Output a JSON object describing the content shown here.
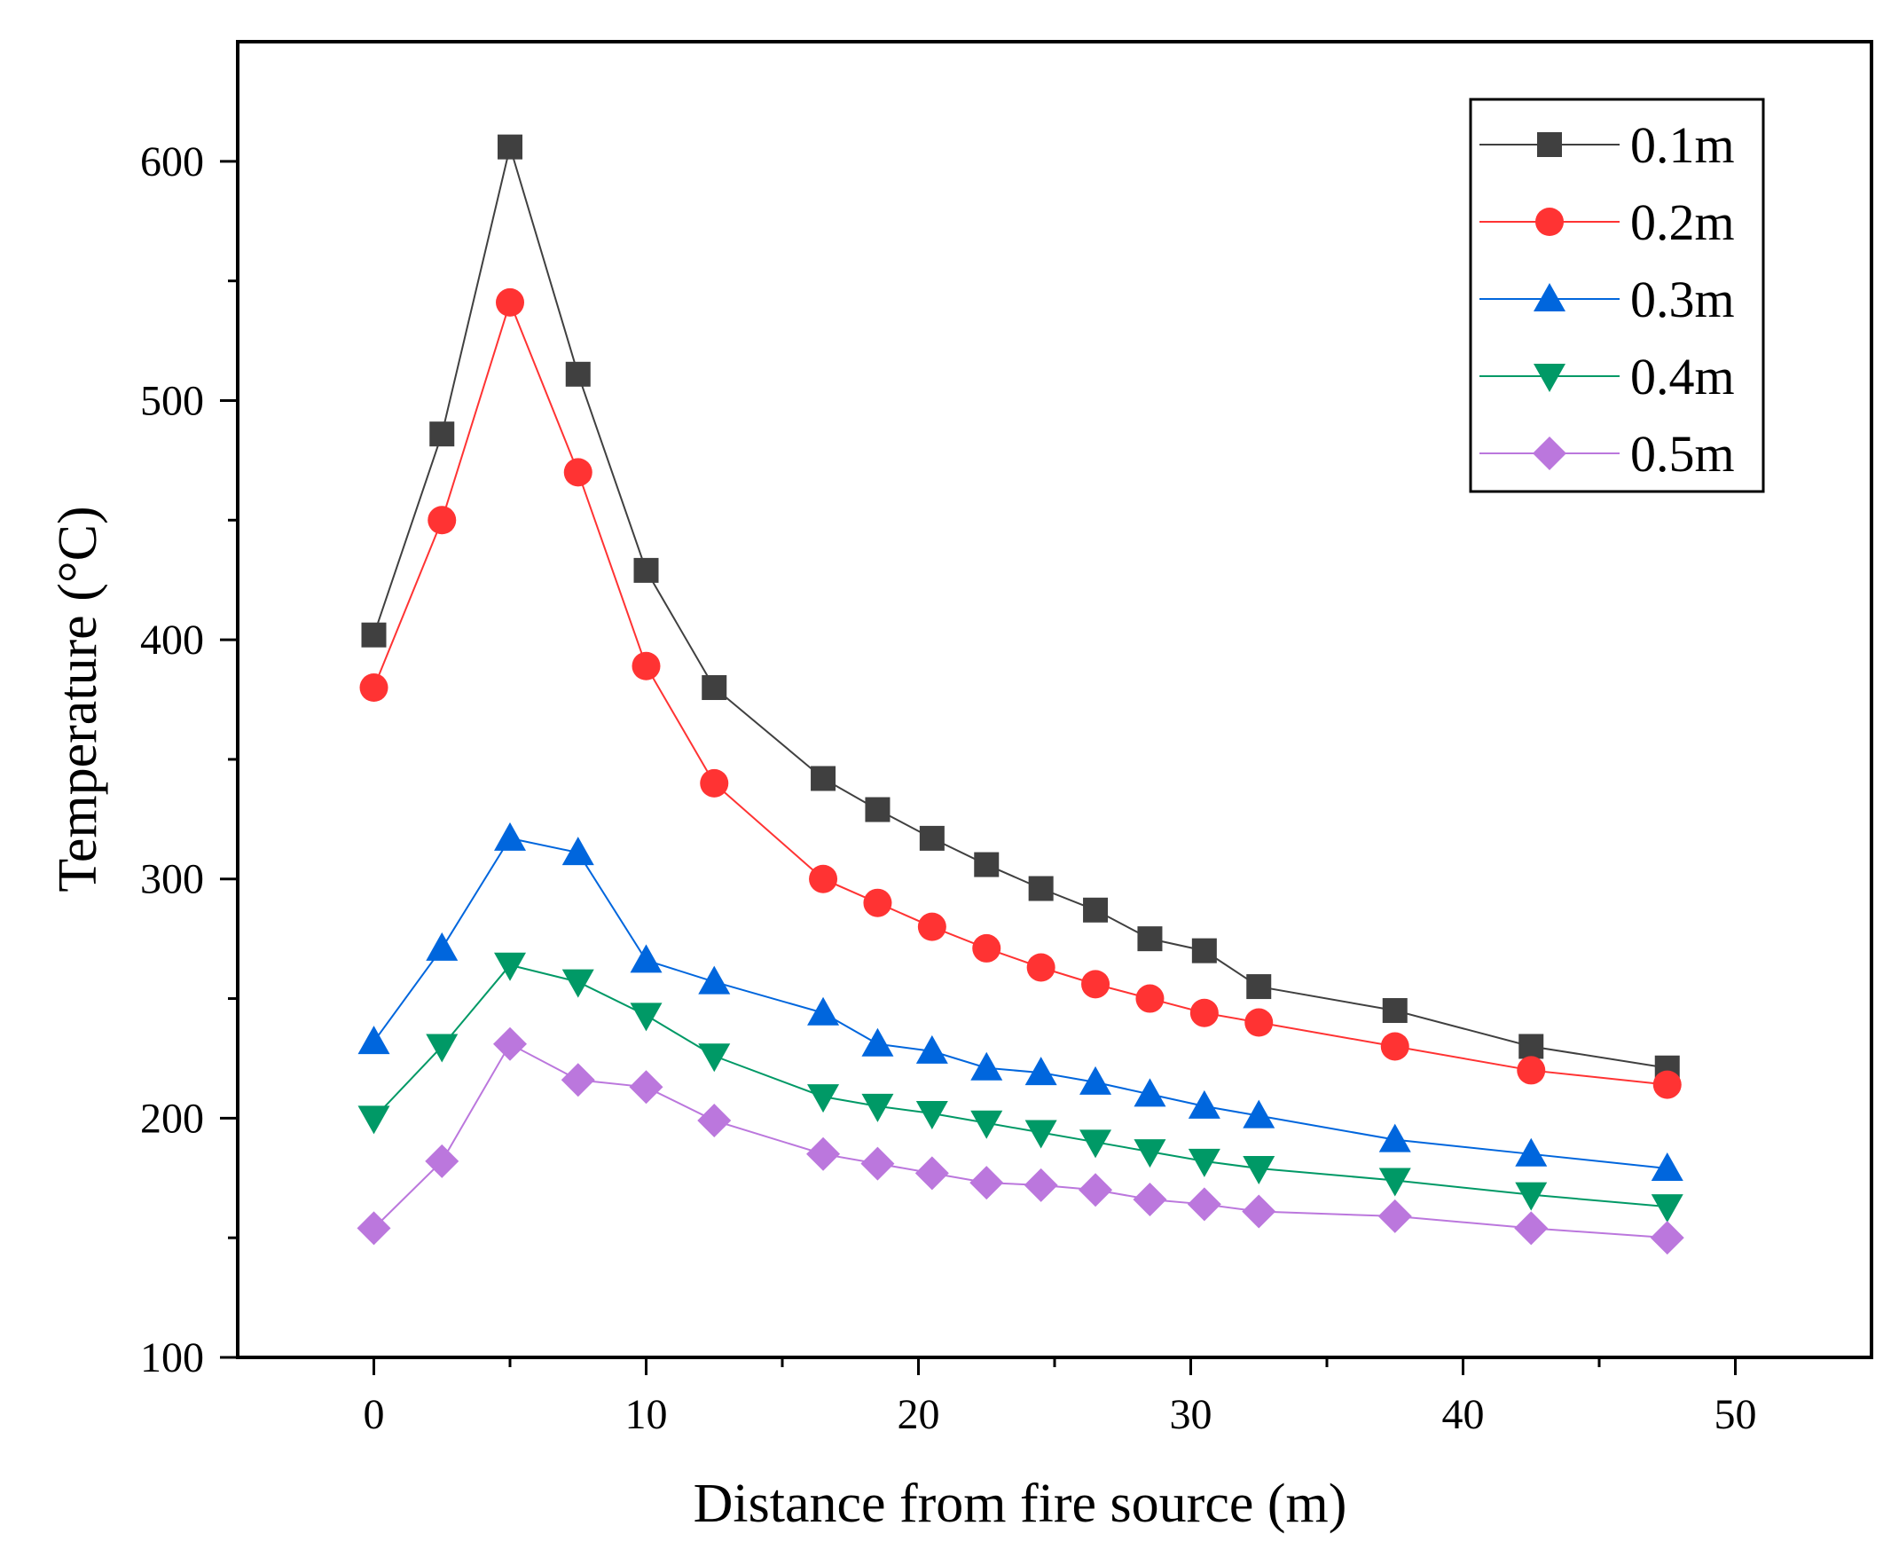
{
  "chart_data": {
    "type": "line",
    "title": "",
    "xlabel": "Distance from fire source (m)",
    "ylabel": "Temperature (°C)",
    "xlim": [
      -5,
      55
    ],
    "ylim": [
      100,
      650
    ],
    "xticks": [
      0,
      10,
      20,
      30,
      40,
      50
    ],
    "xtick_labels": [
      "0",
      "10",
      "20",
      "30",
      "40",
      "50"
    ],
    "yticks": [
      100,
      200,
      300,
      400,
      500,
      600
    ],
    "ytick_labels": [
      "100",
      "200",
      "300",
      "400",
      "500",
      "600"
    ],
    "grid": false,
    "legend_position": "top-right",
    "x": [
      0,
      2.5,
      5,
      7.5,
      10,
      12.5,
      16.5,
      18.5,
      20.5,
      22.5,
      24.5,
      26.5,
      28.5,
      30.5,
      32.5,
      37.5,
      42.5,
      47.5
    ],
    "series": [
      {
        "name": "0.1m",
        "color": "#404040",
        "marker": "square",
        "values": [
          402,
          486,
          606,
          511,
          429,
          380,
          342,
          329,
          317,
          306,
          296,
          287,
          275,
          270,
          255,
          245,
          230,
          221
        ]
      },
      {
        "name": "0.2m",
        "color": "#ff3333",
        "marker": "circle",
        "values": [
          380,
          450,
          541,
          470,
          389,
          340,
          300,
          290,
          280,
          271,
          263,
          256,
          250,
          244,
          240,
          230,
          220,
          214
        ]
      },
      {
        "name": "0.3m",
        "color": "#0066dd",
        "marker": "triangle-up",
        "values": [
          232,
          271,
          317,
          311,
          266,
          257,
          244,
          231,
          228,
          221,
          219,
          215,
          210,
          205,
          201,
          191,
          185,
          179
        ]
      },
      {
        "name": "0.4m",
        "color": "#009966",
        "marker": "triangle-down",
        "values": [
          200,
          230,
          264,
          257,
          243,
          226,
          209,
          205,
          202,
          198,
          194,
          190,
          186,
          182,
          179,
          174,
          168,
          163
        ]
      },
      {
        "name": "0.5m",
        "color": "#bb77dd",
        "marker": "diamond",
        "values": [
          154,
          182,
          231,
          216,
          213,
          199,
          185,
          181,
          177,
          173,
          172,
          170,
          166,
          164,
          161,
          159,
          154,
          150
        ]
      }
    ]
  }
}
